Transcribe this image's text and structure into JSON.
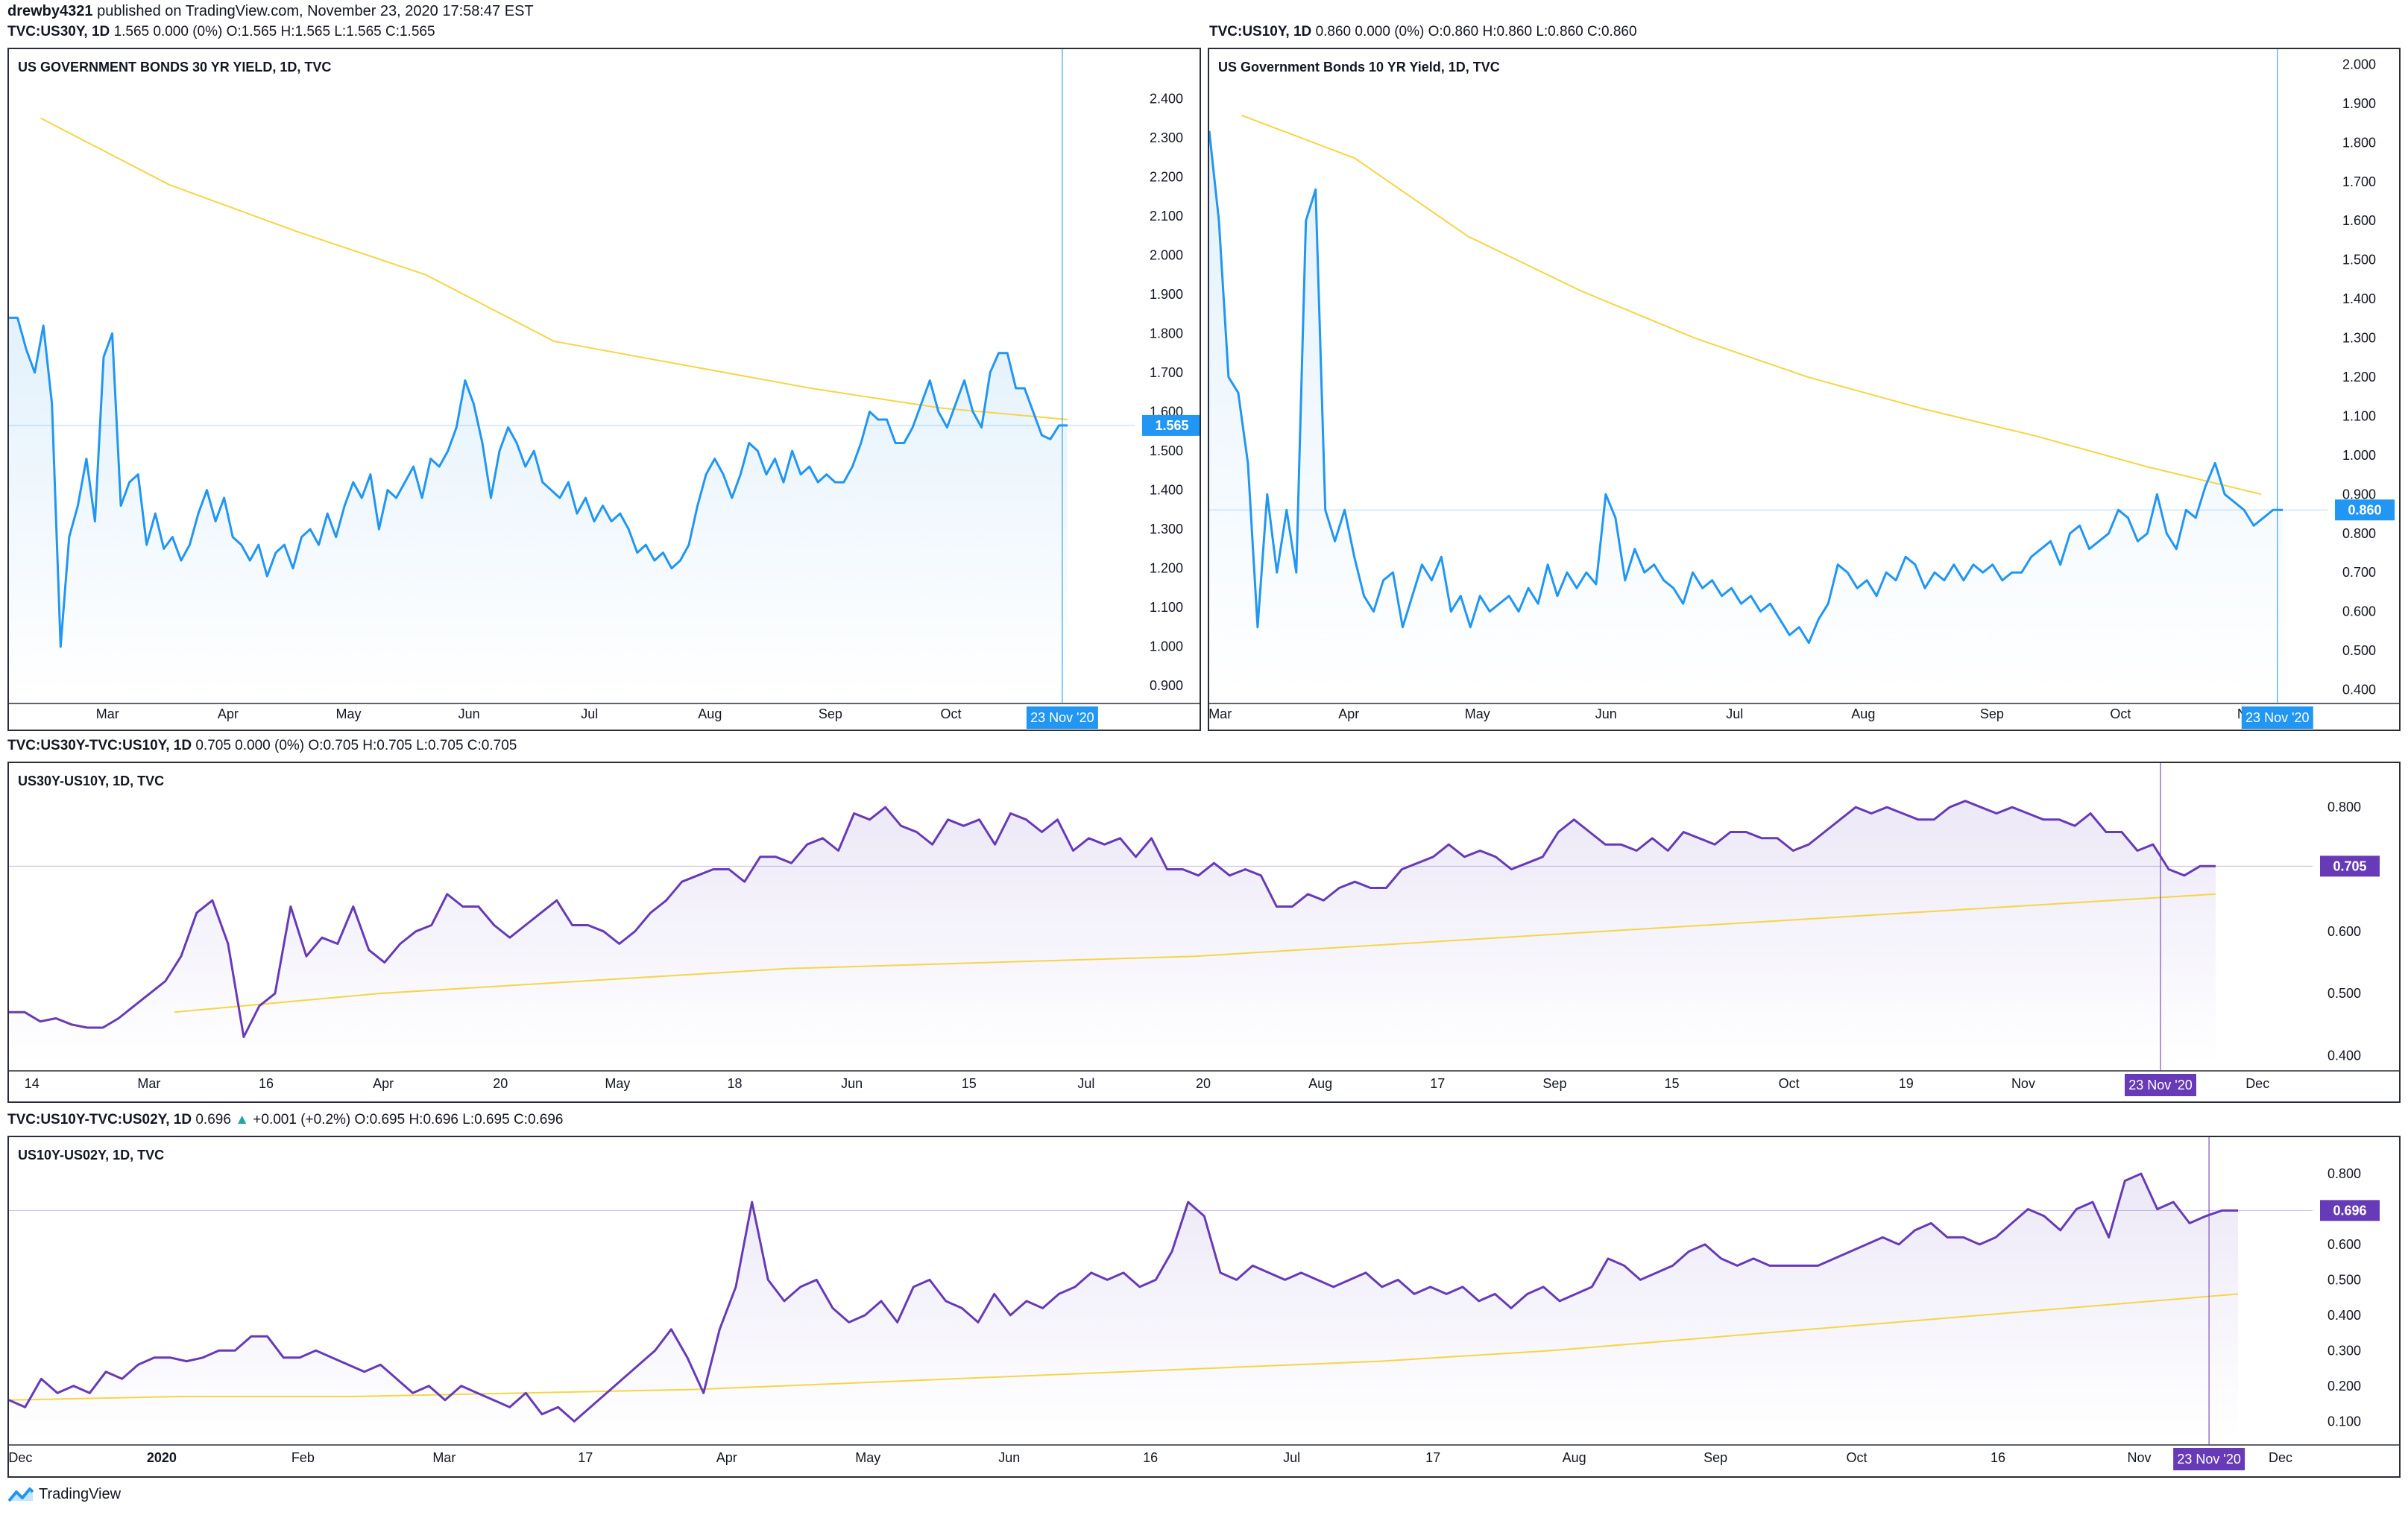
{
  "header": {
    "author": "drewby4321",
    "published": "published on TradingView.com, November 23, 2020 17:58:47 EST"
  },
  "footer": {
    "brand": "TradingView",
    "logo_icon": "tradingview-logo-icon"
  },
  "symbols": {
    "us30y": {
      "name": "TVC:US30Y, 1D",
      "values": "1.565 0.000 (0%)",
      "ohlc": "O:1.565 H:1.565 L:1.565 C:1.565"
    },
    "us10y": {
      "name": "TVC:US10Y, 1D",
      "values": "0.860 0.000 (0%)",
      "ohlc": "O:0.860 H:0.860 L:0.860 C:0.860"
    },
    "spread1": {
      "name": "TVC:US30Y-TVC:US10Y, 1D",
      "values": "0.705 0.000 (0%)",
      "ohlc": "O:0.705 H:0.705 L:0.705 C:0.705"
    },
    "spread2": {
      "name": "TVC:US10Y-TVC:US02Y, 1D",
      "value": "0.696",
      "change": "+0.001 (+0.2%)",
      "o": "O:0.695",
      "h": "H:0.696",
      "l": "L:0.695",
      "c": "C:0.696"
    }
  },
  "colors": {
    "blue": "#2196f3",
    "purple": "#673ab7",
    "ma": "#f5d547",
    "teal": "#26a69a"
  },
  "chart_data": [
    {
      "type": "area",
      "title": "US GOVERNMENT BONDS 30 YR YIELD, 1D, TVC",
      "y_ticks": [
        "2.400",
        "2.300",
        "2.200",
        "2.100",
        "2.000",
        "1.900",
        "1.800",
        "1.700",
        "1.600",
        "1.500",
        "1.400",
        "1.300",
        "1.200",
        "1.100",
        "1.000",
        "0.900"
      ],
      "ylim": [
        0.87,
        2.45
      ],
      "x_ticks": [
        "Mar",
        "Apr",
        "May",
        "Jun",
        "Jul",
        "Aug",
        "Sep",
        "Oct",
        "Nov"
      ],
      "cursor_label": "23 Nov '20",
      "last_value_label": "1.565",
      "last_value": 1.565,
      "series": [
        {
          "values": [
            1.84,
            1.84,
            1.76,
            1.7,
            1.82,
            1.62,
            1.0,
            1.28,
            1.36,
            1.48,
            1.32,
            1.74,
            1.8,
            1.36,
            1.42,
            1.44,
            1.26,
            1.34,
            1.25,
            1.28,
            1.22,
            1.26,
            1.34,
            1.4,
            1.32,
            1.38,
            1.28,
            1.26,
            1.22,
            1.26,
            1.18,
            1.24,
            1.26,
            1.2,
            1.28,
            1.3,
            1.26,
            1.34,
            1.28,
            1.36,
            1.42,
            1.38,
            1.44,
            1.3,
            1.4,
            1.38,
            1.42,
            1.46,
            1.38,
            1.48,
            1.46,
            1.5,
            1.56,
            1.68,
            1.62,
            1.52,
            1.38,
            1.5,
            1.56,
            1.52,
            1.46,
            1.5,
            1.42,
            1.4,
            1.38,
            1.42,
            1.34,
            1.38,
            1.32,
            1.36,
            1.32,
            1.34,
            1.3,
            1.24,
            1.26,
            1.22,
            1.24,
            1.2,
            1.22,
            1.26,
            1.36,
            1.44,
            1.48,
            1.44,
            1.38,
            1.44,
            1.52,
            1.5,
            1.44,
            1.48,
            1.42,
            1.5,
            1.44,
            1.46,
            1.42,
            1.44,
            1.42,
            1.42,
            1.46,
            1.52,
            1.6,
            1.58,
            1.58,
            1.52,
            1.52,
            1.56,
            1.62,
            1.68,
            1.6,
            1.56,
            1.62,
            1.68,
            1.6,
            1.56,
            1.7,
            1.75,
            1.75,
            1.66,
            1.66,
            1.6,
            1.54,
            1.53,
            1.565,
            1.565
          ]
        },
        {
          "name": "",
          "values": [
            2.35,
            2.18,
            2.06,
            1.95,
            1.78,
            1.72,
            1.66,
            1.61,
            1.58
          ]
        }
      ]
    },
    {
      "type": "area",
      "title": "US Government Bonds 10 YR Yield, 1D, TVC",
      "y_ticks": [
        "2.000",
        "1.900",
        "1.800",
        "1.700",
        "1.600",
        "1.500",
        "1.400",
        "1.300",
        "1.200",
        "1.100",
        "1.000",
        "0.900",
        "0.800",
        "0.700",
        "0.600",
        "0.500",
        "0.400"
      ],
      "ylim": [
        0.38,
        2.02
      ],
      "x_ticks": [
        "Mar",
        "Apr",
        "May",
        "Jun",
        "Jul",
        "Aug",
        "Sep",
        "Oct",
        "Nov"
      ],
      "cursor_label": "23 Nov '20",
      "last_value_label": "0.860",
      "last_value": 0.86,
      "series": [
        {
          "values": [
            1.83,
            1.6,
            1.2,
            1.16,
            0.98,
            0.56,
            0.9,
            0.7,
            0.86,
            0.7,
            1.6,
            1.68,
            0.86,
            0.78,
            0.86,
            0.74,
            0.64,
            0.6,
            0.68,
            0.7,
            0.56,
            0.64,
            0.72,
            0.68,
            0.74,
            0.6,
            0.64,
            0.56,
            0.64,
            0.6,
            0.62,
            0.64,
            0.6,
            0.66,
            0.62,
            0.72,
            0.64,
            0.7,
            0.66,
            0.7,
            0.67,
            0.9,
            0.84,
            0.68,
            0.76,
            0.7,
            0.72,
            0.68,
            0.66,
            0.62,
            0.7,
            0.66,
            0.68,
            0.64,
            0.66,
            0.62,
            0.64,
            0.6,
            0.62,
            0.58,
            0.54,
            0.56,
            0.52,
            0.58,
            0.62,
            0.72,
            0.7,
            0.66,
            0.68,
            0.64,
            0.7,
            0.68,
            0.74,
            0.72,
            0.66,
            0.7,
            0.68,
            0.72,
            0.68,
            0.72,
            0.7,
            0.72,
            0.68,
            0.7,
            0.7,
            0.74,
            0.76,
            0.78,
            0.72,
            0.8,
            0.82,
            0.76,
            0.78,
            0.8,
            0.86,
            0.84,
            0.78,
            0.8,
            0.9,
            0.8,
            0.76,
            0.86,
            0.84,
            0.92,
            0.98,
            0.9,
            0.88,
            0.86,
            0.82,
            0.84,
            0.86,
            0.86
          ]
        },
        {
          "name": "",
          "values": [
            1.87,
            1.76,
            1.56,
            1.42,
            1.3,
            1.2,
            1.12,
            1.05,
            0.97,
            0.9
          ]
        }
      ]
    },
    {
      "type": "area",
      "title": "US30Y-US10Y, 1D, TVC",
      "y_ticks": [
        "0.800",
        "0.700",
        "0.600",
        "0.500",
        "0.400"
      ],
      "ylim": [
        0.385,
        0.835
      ],
      "x_ticks": [
        "14",
        "Mar",
        "16",
        "Apr",
        "20",
        "May",
        "18",
        "Jun",
        "15",
        "Jul",
        "20",
        "Aug",
        "17",
        "Sep",
        "15",
        "Oct",
        "19",
        "Nov",
        "16",
        "Dec"
      ],
      "cursor_label": "23 Nov '20",
      "last_value_label": "0.705",
      "last_value": 0.705,
      "series": [
        {
          "values": [
            0.47,
            0.47,
            0.455,
            0.46,
            0.45,
            0.445,
            0.445,
            0.46,
            0.48,
            0.5,
            0.52,
            0.56,
            0.63,
            0.65,
            0.58,
            0.43,
            0.48,
            0.5,
            0.64,
            0.56,
            0.59,
            0.58,
            0.64,
            0.57,
            0.55,
            0.58,
            0.6,
            0.61,
            0.66,
            0.64,
            0.64,
            0.61,
            0.59,
            0.61,
            0.63,
            0.65,
            0.61,
            0.61,
            0.6,
            0.58,
            0.6,
            0.63,
            0.65,
            0.68,
            0.69,
            0.7,
            0.7,
            0.68,
            0.72,
            0.72,
            0.71,
            0.74,
            0.75,
            0.73,
            0.79,
            0.78,
            0.8,
            0.77,
            0.76,
            0.74,
            0.78,
            0.77,
            0.78,
            0.74,
            0.79,
            0.78,
            0.76,
            0.78,
            0.73,
            0.75,
            0.74,
            0.75,
            0.72,
            0.75,
            0.7,
            0.7,
            0.69,
            0.71,
            0.69,
            0.7,
            0.69,
            0.64,
            0.64,
            0.66,
            0.65,
            0.67,
            0.68,
            0.67,
            0.67,
            0.7,
            0.71,
            0.72,
            0.74,
            0.72,
            0.73,
            0.72,
            0.7,
            0.71,
            0.72,
            0.76,
            0.78,
            0.76,
            0.74,
            0.74,
            0.73,
            0.75,
            0.73,
            0.76,
            0.75,
            0.74,
            0.76,
            0.76,
            0.75,
            0.75,
            0.73,
            0.74,
            0.76,
            0.78,
            0.8,
            0.79,
            0.8,
            0.79,
            0.78,
            0.78,
            0.8,
            0.81,
            0.8,
            0.79,
            0.8,
            0.79,
            0.78,
            0.78,
            0.77,
            0.79,
            0.76,
            0.76,
            0.73,
            0.74,
            0.7,
            0.69,
            0.705,
            0.705
          ]
        },
        {
          "name": "",
          "values": [
            0.47,
            0.5,
            0.52,
            0.54,
            0.55,
            0.56,
            0.58,
            0.6,
            0.62,
            0.64,
            0.66
          ]
        }
      ]
    },
    {
      "type": "area",
      "title": "US10Y-US02Y, 1D, TVC",
      "y_ticks": [
        "0.800",
        "0.700",
        "0.600",
        "0.500",
        "0.400",
        "0.300",
        "0.200",
        "0.100"
      ],
      "ylim": [
        0.05,
        0.84
      ],
      "x_ticks": [
        "Dec",
        "2020",
        "Feb",
        "Mar",
        "17",
        "Apr",
        "May",
        "Jun",
        "16",
        "Jul",
        "17",
        "Aug",
        "Sep",
        "Oct",
        "16",
        "Nov",
        "Dec"
      ],
      "cursor_label": "23 Nov '20",
      "last_value_label": "0.696",
      "last_value": 0.696,
      "series": [
        {
          "values": [
            0.16,
            0.14,
            0.22,
            0.18,
            0.2,
            0.18,
            0.24,
            0.22,
            0.26,
            0.28,
            0.28,
            0.27,
            0.28,
            0.3,
            0.3,
            0.34,
            0.34,
            0.28,
            0.28,
            0.3,
            0.28,
            0.26,
            0.24,
            0.26,
            0.22,
            0.18,
            0.2,
            0.16,
            0.2,
            0.18,
            0.16,
            0.14,
            0.18,
            0.12,
            0.14,
            0.1,
            0.14,
            0.18,
            0.22,
            0.26,
            0.3,
            0.36,
            0.28,
            0.18,
            0.36,
            0.48,
            0.72,
            0.5,
            0.44,
            0.48,
            0.5,
            0.42,
            0.38,
            0.4,
            0.44,
            0.38,
            0.48,
            0.5,
            0.44,
            0.42,
            0.38,
            0.46,
            0.4,
            0.44,
            0.42,
            0.46,
            0.48,
            0.52,
            0.5,
            0.52,
            0.48,
            0.5,
            0.58,
            0.72,
            0.68,
            0.52,
            0.5,
            0.54,
            0.52,
            0.5,
            0.52,
            0.5,
            0.48,
            0.5,
            0.52,
            0.48,
            0.5,
            0.46,
            0.48,
            0.46,
            0.48,
            0.44,
            0.46,
            0.42,
            0.46,
            0.48,
            0.44,
            0.46,
            0.48,
            0.56,
            0.54,
            0.5,
            0.52,
            0.54,
            0.58,
            0.6,
            0.56,
            0.54,
            0.56,
            0.54,
            0.54,
            0.54,
            0.54,
            0.56,
            0.58,
            0.6,
            0.62,
            0.6,
            0.64,
            0.66,
            0.62,
            0.62,
            0.6,
            0.62,
            0.66,
            0.7,
            0.68,
            0.64,
            0.7,
            0.72,
            0.62,
            0.78,
            0.8,
            0.7,
            0.72,
            0.66,
            0.68,
            0.696,
            0.696
          ]
        },
        {
          "name": "",
          "values": [
            0.16,
            0.17,
            0.17,
            0.18,
            0.19,
            0.21,
            0.23,
            0.25,
            0.27,
            0.3,
            0.34,
            0.38,
            0.42,
            0.46
          ]
        }
      ]
    }
  ]
}
